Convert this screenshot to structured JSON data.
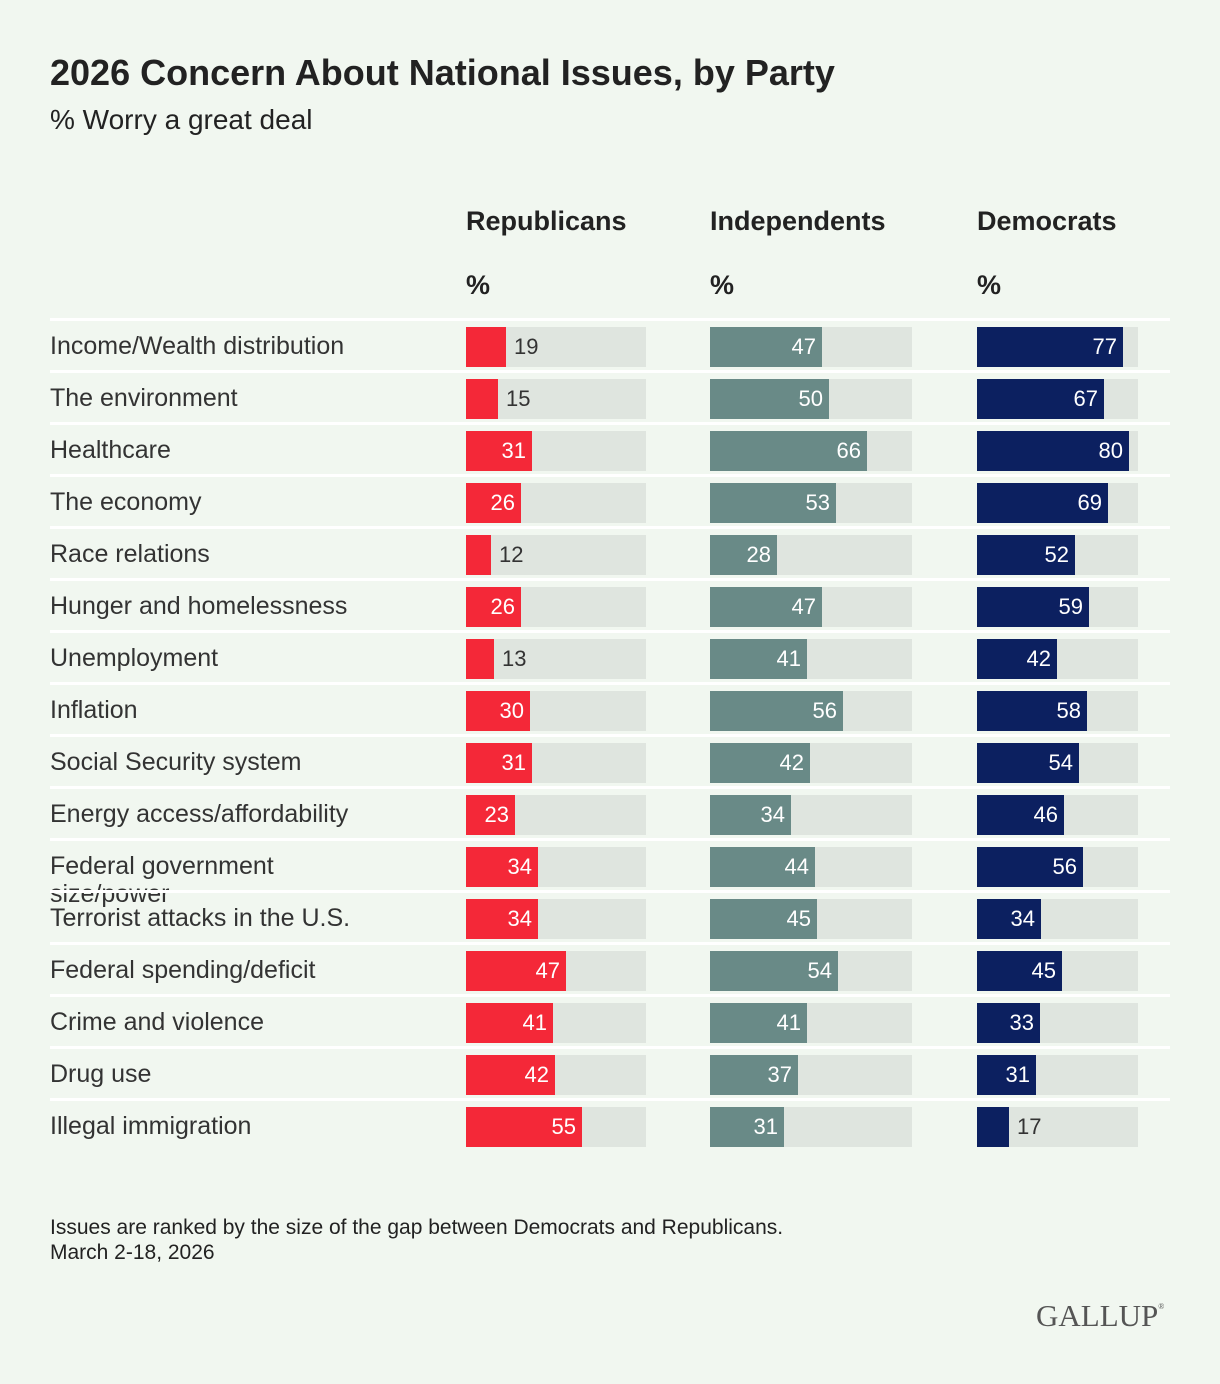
{
  "chart_data": {
    "type": "bar",
    "title": "2026 Concern About National Issues, by Party",
    "subtitle": "% Worry a great deal",
    "unit_label": "%",
    "xlim": [
      0,
      85
    ],
    "categories": [
      "Income/Wealth distribution",
      "The environment",
      "Healthcare",
      "The economy",
      "Race relations",
      "Hunger and homelessness",
      "Unemployment",
      "Inflation",
      "Social Security system",
      "Energy access/affordability",
      "Federal government size/power",
      "Terrorist attacks in the U.S.",
      "Federal spending/deficit",
      "Crime and violence",
      "Drug use",
      "Illegal immigration"
    ],
    "series": [
      {
        "name": "Republicans",
        "color": "#f42838",
        "values": [
          19,
          15,
          31,
          26,
          12,
          26,
          13,
          30,
          31,
          23,
          34,
          34,
          47,
          41,
          42,
          55
        ]
      },
      {
        "name": "Independents",
        "color": "#698a87",
        "values": [
          47,
          50,
          66,
          53,
          28,
          47,
          41,
          56,
          42,
          34,
          44,
          45,
          54,
          41,
          37,
          31
        ]
      },
      {
        "name": "Democrats",
        "color": "#0c2060",
        "values": [
          77,
          67,
          80,
          69,
          52,
          59,
          42,
          58,
          54,
          46,
          56,
          34,
          45,
          33,
          31,
          17
        ]
      }
    ]
  },
  "footnote": "Issues are ranked by the size of the gap between Democrats and Republicans.",
  "date": "March 2-18, 2026",
  "logo": "GALLUP"
}
